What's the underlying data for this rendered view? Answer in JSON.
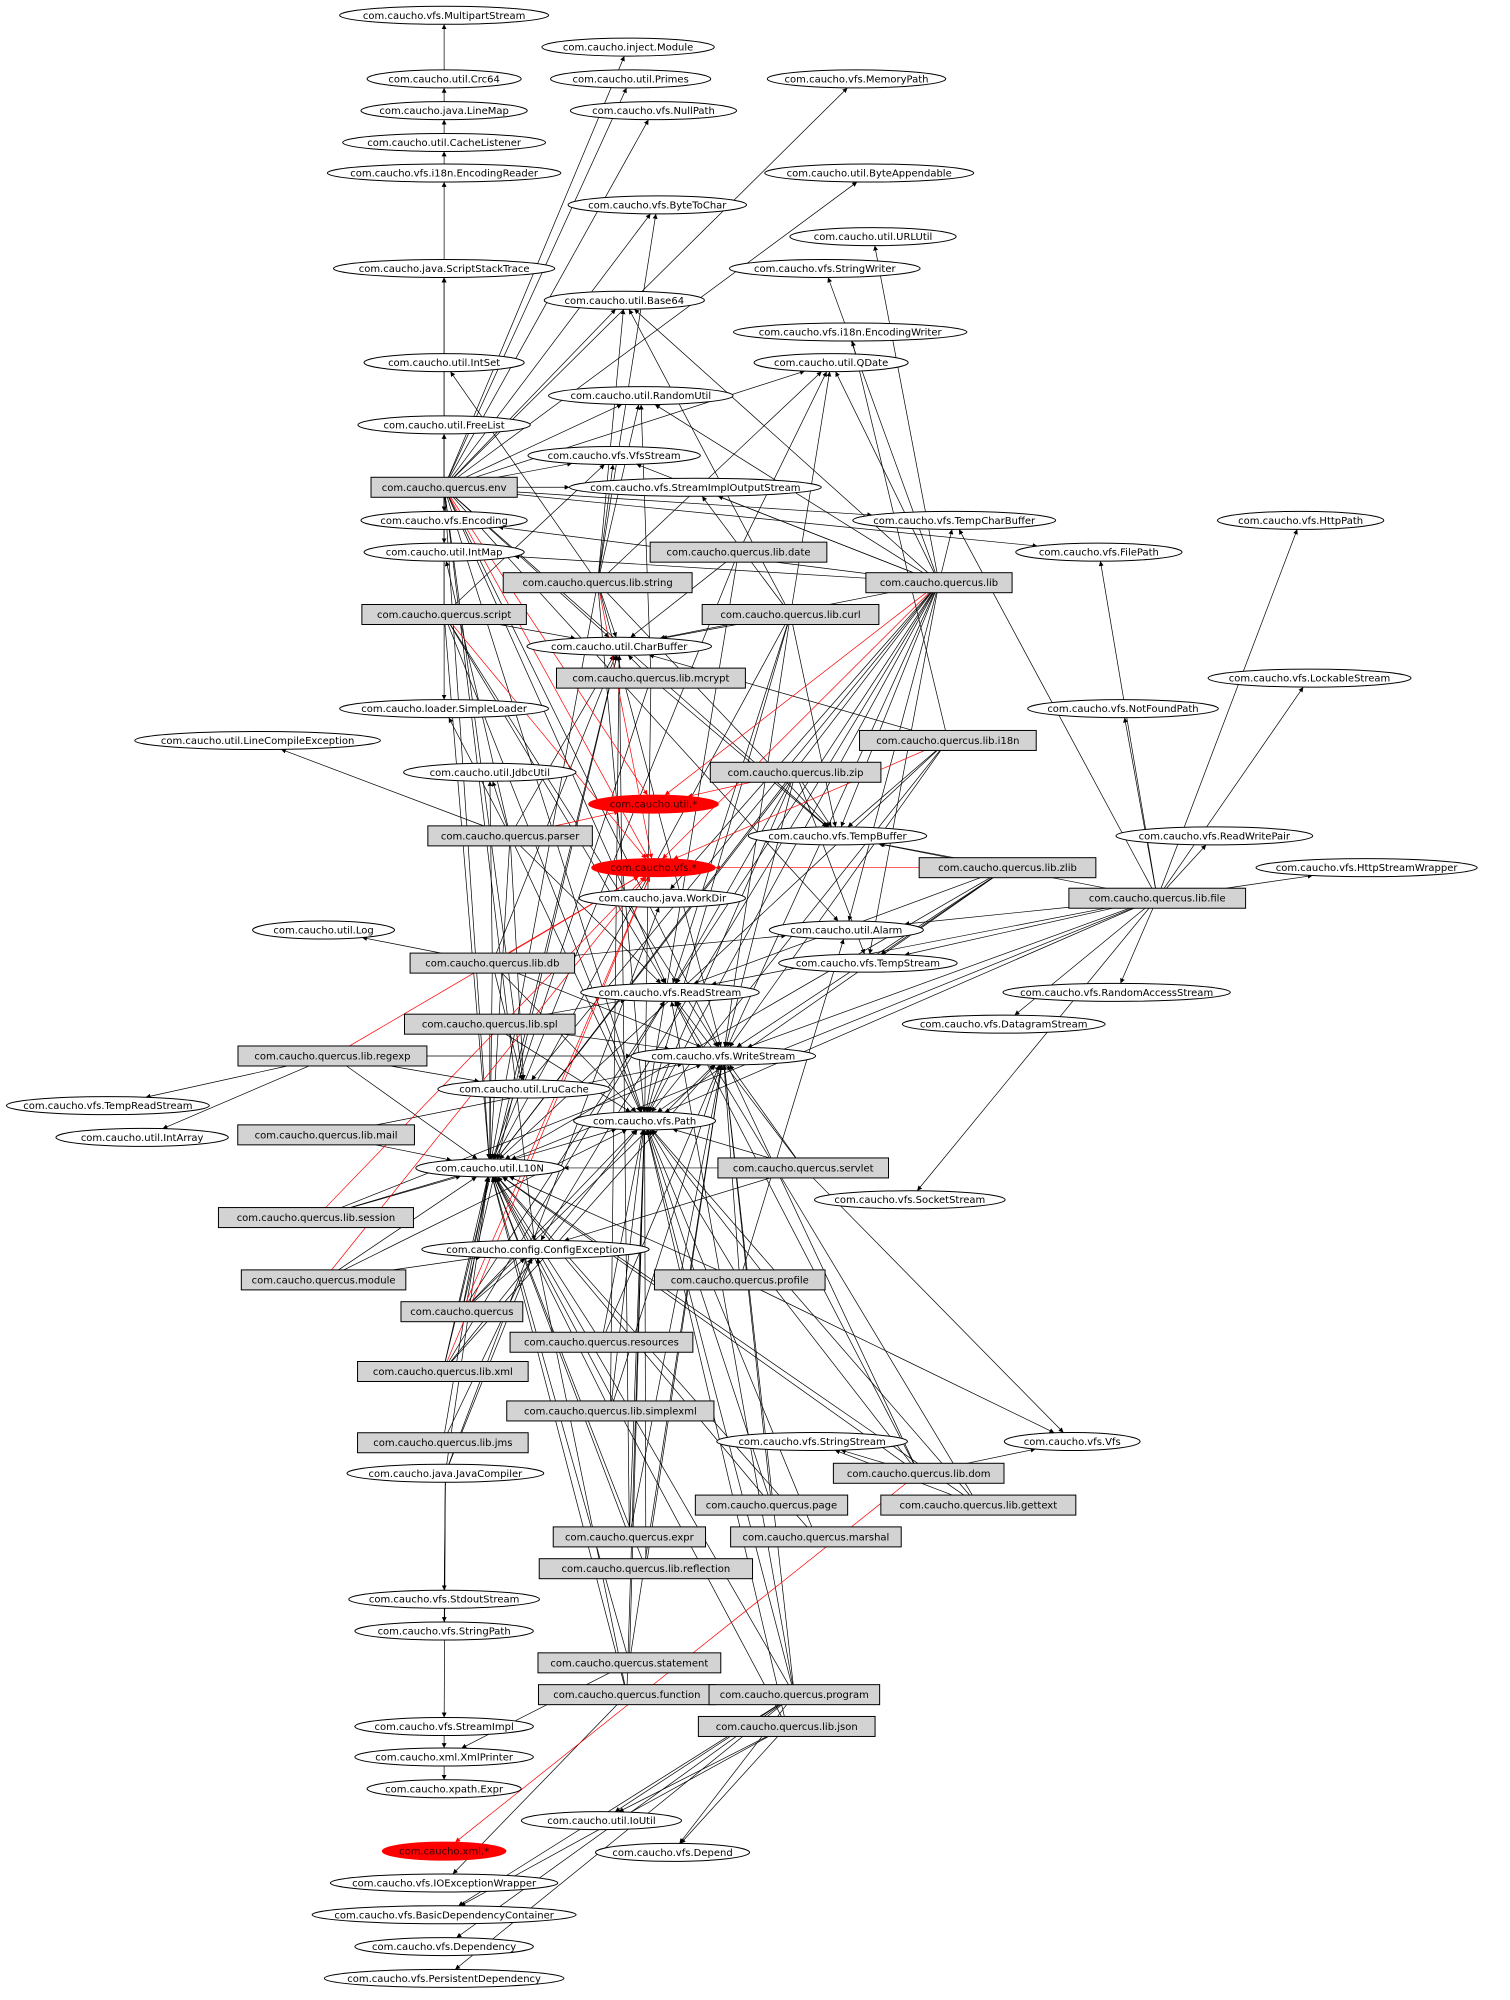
{
  "colors": {
    "node_fill": "#ffffff",
    "package_fill": "#d3d3d3",
    "cycle_fill": "#ff0000",
    "edge": "#000000",
    "cycle_edge": "#ff0000"
  },
  "nodes": {
    "MultipartStream": "com.caucho.vfs.MultipartStream",
    "injectModule": "com.caucho.inject.Module",
    "Crc64": "com.caucho.util.Crc64",
    "Primes": "com.caucho.util.Primes",
    "MemoryPath": "com.caucho.vfs.MemoryPath",
    "LineMap": "com.caucho.java.LineMap",
    "NullPath": "com.caucho.vfs.NullPath",
    "CacheListener": "com.caucho.util.CacheListener",
    "EncodingReader": "com.caucho.vfs.i18n.EncodingReader",
    "ByteAppendable": "com.caucho.util.ByteAppendable",
    "ByteToChar": "com.caucho.vfs.ByteToChar",
    "URLUtil": "com.caucho.util.URLUtil",
    "ScriptStackTrace": "com.caucho.java.ScriptStackTrace",
    "StringWriter": "com.caucho.vfs.StringWriter",
    "Base64": "com.caucho.util.Base64",
    "EncodingWriter": "com.caucho.vfs.i18n.EncodingWriter",
    "IntSet": "com.caucho.util.IntSet",
    "QDate": "com.caucho.util.QDate",
    "RandomUtil": "com.caucho.util.RandomUtil",
    "FreeList": "com.caucho.util.FreeList",
    "VfsStream": "com.caucho.vfs.VfsStream",
    "quercusEnv": "com.caucho.quercus.env",
    "StreamImplOutputStream": "com.caucho.vfs.StreamImplOutputStream",
    "Encoding": "com.caucho.vfs.Encoding",
    "TempCharBuffer": "com.caucho.vfs.TempCharBuffer",
    "HttpPath": "com.caucho.vfs.HttpPath",
    "IntMap": "com.caucho.util.IntMap",
    "libDate": "com.caucho.quercus.lib.date",
    "FilePath": "com.caucho.vfs.FilePath",
    "libString": "com.caucho.quercus.lib.string",
    "quercusLib": "com.caucho.quercus.lib",
    "quercusScript": "com.caucho.quercus.script",
    "libCurl": "com.caucho.quercus.lib.curl",
    "CharBuffer": "com.caucho.util.CharBuffer",
    "libMcrypt": "com.caucho.quercus.lib.mcrypt",
    "LockableStream": "com.caucho.vfs.LockableStream",
    "SimpleLoader": "com.caucho.loader.SimpleLoader",
    "NotFoundPath": "com.caucho.vfs.NotFoundPath",
    "libI18n": "com.caucho.quercus.lib.i18n",
    "LineCompileException": "com.caucho.util.LineCompileException",
    "JdbcUtil": "com.caucho.util.JdbcUtil",
    "libZip": "com.caucho.quercus.lib.zip",
    "utilStar": "com.caucho.util.*",
    "quercusParser": "com.caucho.quercus.parser",
    "TempBuffer": "com.caucho.vfs.TempBuffer",
    "ReadWritePair": "com.caucho.vfs.ReadWritePair",
    "libZlib": "com.caucho.quercus.lib.zlib",
    "vfsStar": "com.caucho.vfs.*",
    "HttpStreamWrapper": "com.caucho.vfs.HttpStreamWrapper",
    "WorkDir": "com.caucho.java.WorkDir",
    "libFile": "com.caucho.quercus.lib.file",
    "Log": "com.caucho.util.Log",
    "Alarm": "com.caucho.util.Alarm",
    "libDb": "com.caucho.quercus.lib.db",
    "TempStream": "com.caucho.vfs.TempStream",
    "ReadStream": "com.caucho.vfs.ReadStream",
    "RandomAccessStream": "com.caucho.vfs.RandomAccessStream",
    "libSpl": "com.caucho.quercus.lib.spl",
    "DatagramStream": "com.caucho.vfs.DatagramStream",
    "libRegexp": "com.caucho.quercus.lib.regexp",
    "WriteStream": "com.caucho.vfs.WriteStream",
    "LruCache": "com.caucho.util.LruCache",
    "TempReadStream": "com.caucho.vfs.TempReadStream",
    "Path": "com.caucho.vfs.Path",
    "IntArray": "com.caucho.util.IntArray",
    "libMail": "com.caucho.quercus.lib.mail",
    "quercusServlet": "com.caucho.quercus.servlet",
    "L10N": "com.caucho.util.L10N",
    "SocketStream": "com.caucho.vfs.SocketStream",
    "libSession": "com.caucho.quercus.lib.session",
    "ConfigException": "com.caucho.config.ConfigException",
    "quercusModule": "com.caucho.quercus.module",
    "quercusProfile": "com.caucho.quercus.profile",
    "quercus": "com.caucho.quercus",
    "quercusResources": "com.caucho.quercus.resources",
    "libXml": "com.caucho.quercus.lib.xml",
    "libSimplexml": "com.caucho.quercus.lib.simplexml",
    "StringStream": "com.caucho.vfs.StringStream",
    "Vfs": "com.caucho.vfs.Vfs",
    "libJms": "com.caucho.quercus.lib.jms",
    "libDom": "com.caucho.quercus.lib.dom",
    "JavaCompiler": "com.caucho.java.JavaCompiler",
    "quercusPage": "com.caucho.quercus.page",
    "libGettext": "com.caucho.quercus.lib.gettext",
    "quercusExpr": "com.caucho.quercus.expr",
    "quercusMarshal": "com.caucho.quercus.marshal",
    "libReflection": "com.caucho.quercus.lib.reflection",
    "StdoutStream": "com.caucho.vfs.StdoutStream",
    "StringPath": "com.caucho.vfs.StringPath",
    "quercusStatement": "com.caucho.quercus.statement",
    "quercusFunction": "com.caucho.quercus.function",
    "quercusProgram": "com.caucho.quercus.program",
    "libJson": "com.caucho.quercus.lib.json",
    "StreamImpl": "com.caucho.vfs.StreamImpl",
    "XmlPrinter": "com.caucho.xml.XmlPrinter",
    "XpathExpr": "com.caucho.xpath.Expr",
    "IoUtil": "com.caucho.util.IoUtil",
    "Depend": "com.caucho.vfs.Depend",
    "xmlStar": "com.caucho.xml.*",
    "IOExceptionWrapper": "com.caucho.vfs.IOExceptionWrapper",
    "BasicDependencyContainer": "com.caucho.vfs.BasicDependencyContainer",
    "Dependency": "com.caucho.vfs.Dependency",
    "PersistentDependency": "com.caucho.vfs.PersistentDependency"
  }
}
